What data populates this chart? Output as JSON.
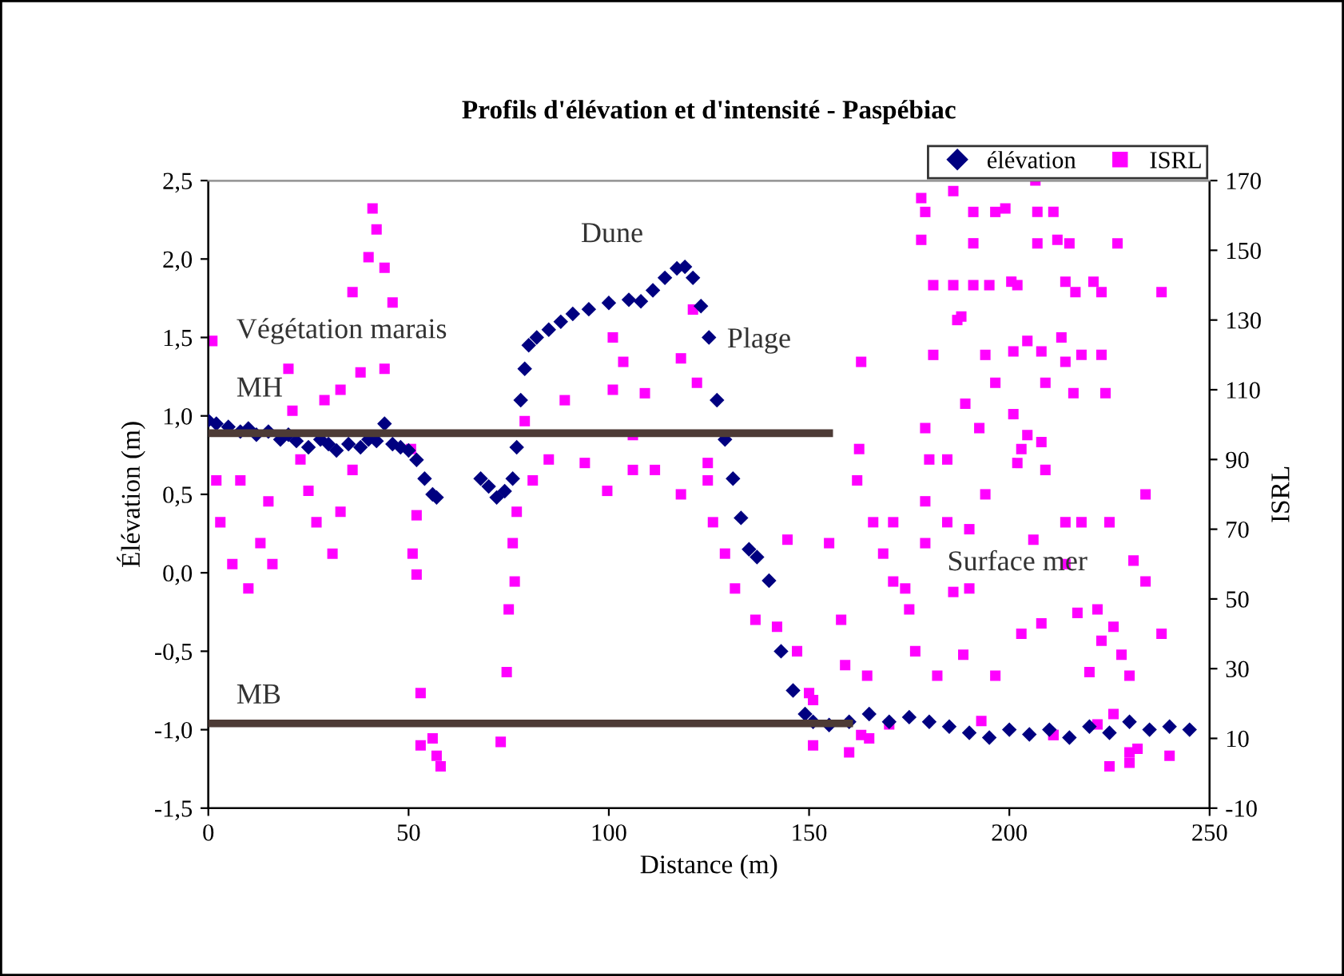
{
  "chart_data": {
    "type": "scatter",
    "title": "Profils d'élévation et d'intensité - Paspébiac",
    "xlabel": "Distance (m)",
    "ylabel": "Élévation (m)",
    "y2label": "ISRL",
    "xlim": [
      0,
      250
    ],
    "xticks": [
      0,
      50,
      100,
      150,
      200,
      250
    ],
    "ylim": [
      -1.5,
      2.5
    ],
    "yticks": [
      {
        "value": -1.5,
        "label": "-1,5"
      },
      {
        "value": -1.0,
        "label": "-1,0"
      },
      {
        "value": -0.5,
        "label": "-0,5"
      },
      {
        "value": 0,
        "label": "0,0"
      },
      {
        "value": 0.5,
        "label": "0,5"
      },
      {
        "value": 1.0,
        "label": "1,0"
      },
      {
        "value": 1.5,
        "label": "1,5"
      },
      {
        "value": 2.0,
        "label": "2,0"
      },
      {
        "value": 2.5,
        "label": "2,5"
      }
    ],
    "y2lim": [
      -10,
      170
    ],
    "y2ticks": [
      -10,
      10,
      30,
      50,
      70,
      90,
      110,
      130,
      150,
      170
    ],
    "grid": false,
    "legend": "top right",
    "series": [
      {
        "name": "élévation",
        "marker": "diamond",
        "color": "#000080",
        "x": [
          0,
          2,
          5,
          8,
          10,
          12,
          15,
          18,
          20,
          22,
          25,
          28,
          30,
          32,
          35,
          38,
          40,
          42,
          44,
          46,
          48,
          50,
          52,
          54,
          56,
          57,
          68,
          70,
          72,
          74,
          76,
          77,
          78,
          79,
          80,
          82,
          85,
          88,
          91,
          95,
          100,
          105,
          108,
          111,
          114,
          117,
          119,
          121,
          123,
          125,
          127,
          129,
          131,
          133,
          135,
          137,
          140,
          143,
          146,
          149,
          151,
          155,
          160,
          165,
          170,
          175,
          180,
          185,
          190,
          195,
          200,
          205,
          210,
          215,
          220,
          225,
          230,
          235,
          240,
          245
        ],
        "values": [
          0.97,
          0.95,
          0.93,
          0.9,
          0.92,
          0.88,
          0.9,
          0.85,
          0.88,
          0.84,
          0.8,
          0.85,
          0.82,
          0.78,
          0.82,
          0.8,
          0.85,
          0.84,
          0.95,
          0.82,
          0.8,
          0.78,
          0.72,
          0.6,
          0.5,
          0.48,
          0.6,
          0.55,
          0.48,
          0.52,
          0.6,
          0.8,
          1.1,
          1.3,
          1.45,
          1.5,
          1.55,
          1.6,
          1.65,
          1.68,
          1.72,
          1.74,
          1.73,
          1.8,
          1.88,
          1.94,
          1.95,
          1.88,
          1.7,
          1.5,
          1.1,
          0.85,
          0.6,
          0.35,
          0.15,
          0.1,
          -0.05,
          -0.5,
          -0.75,
          -0.9,
          -0.95,
          -0.97,
          -0.95,
          -0.9,
          -0.95,
          -0.92,
          -0.95,
          -0.98,
          -1.02,
          -1.05,
          -1.0,
          -1.03,
          -1.0,
          -1.05,
          -0.98,
          -1.02,
          -0.95,
          -1.0,
          -0.98,
          -1.0
        ]
      },
      {
        "name": "ISRL",
        "marker": "square",
        "color": "#ff00ff",
        "axis": "y2",
        "x": [
          1,
          2,
          3,
          8,
          6,
          10,
          15,
          13,
          16,
          20,
          21,
          23,
          25,
          27,
          31,
          29,
          33,
          33,
          36,
          38,
          40,
          41,
          42,
          44,
          46,
          44,
          36,
          50.6,
          52,
          51,
          52,
          53,
          53,
          56,
          57,
          58,
          73,
          74.5,
          75,
          76.5,
          76,
          77,
          79,
          89,
          101,
          103.6,
          101,
          109,
          118,
          121,
          122,
          85,
          81,
          94,
          99.6,
          106,
          106,
          111.5,
          118,
          124.7,
          124.7,
          126,
          129,
          131.5,
          136.6,
          142,
          144.6,
          147,
          150,
          151,
          155,
          158,
          159,
          162.5,
          162,
          163,
          164.5,
          166,
          171,
          168.5,
          171,
          174,
          175,
          176.5,
          178,
          178,
          179,
          186,
          179,
          180,
          184.5,
          181,
          186,
          181,
          179,
          184.5,
          190,
          179,
          182,
          188.5,
          186,
          191,
          191,
          191,
          195,
          196.5,
          199,
          187,
          188,
          189,
          192.5,
          194,
          196.5,
          194,
          190,
          196.5,
          200.5,
          202,
          201,
          203,
          202,
          201,
          204.5,
          204.5,
          207,
          207,
          206.5,
          206,
          203,
          208,
          209,
          208,
          209,
          208,
          211,
          212,
          213,
          211,
          214,
          216,
          214,
          214,
          215,
          214,
          216.5,
          218,
          218,
          217,
          221,
          223,
          223,
          224,
          225,
          222,
          220,
          227,
          223,
          226,
          228,
          230,
          234,
          231,
          234,
          238,
          238,
          211,
          230,
          232,
          222,
          226,
          193,
          163,
          151,
          160,
          165,
          170,
          225,
          230,
          240
        ],
        "values": [
          124,
          84,
          72,
          84,
          60,
          53,
          78,
          66,
          60,
          116,
          104,
          90,
          81,
          72,
          63,
          107,
          110,
          75,
          138,
          115,
          148,
          162,
          156,
          145,
          135,
          116,
          87,
          93,
          74,
          63,
          57,
          23,
          8,
          10,
          5,
          2,
          9,
          29,
          47,
          55,
          66,
          75,
          101,
          107,
          125,
          118,
          110,
          109,
          119,
          133,
          112,
          90,
          84,
          89,
          81,
          97,
          87,
          87,
          80,
          89,
          84,
          72,
          63,
          53,
          44,
          42,
          67,
          35,
          23,
          8,
          66,
          44,
          31,
          93,
          84,
          118,
          28,
          72,
          72,
          63,
          55,
          53,
          47,
          35,
          165,
          153,
          161,
          167,
          99,
          90,
          90,
          140,
          140,
          120,
          78,
          72,
          70,
          66,
          28,
          34,
          52,
          161,
          152,
          140,
          140,
          161,
          162,
          130,
          131,
          106,
          99,
          120,
          112,
          80,
          53,
          28,
          141,
          140,
          103,
          93,
          89,
          121,
          124,
          97,
          161,
          152,
          170,
          67,
          40,
          121,
          112,
          95,
          87,
          43,
          161,
          153,
          125,
          11,
          118,
          109,
          60,
          72,
          152,
          141,
          138,
          120,
          72,
          46,
          141,
          138,
          120,
          109,
          72,
          47,
          29,
          152,
          38,
          42,
          34,
          28,
          80,
          61,
          55,
          138,
          40,
          11,
          6,
          7,
          14,
          17,
          15,
          11,
          21,
          6,
          10,
          14,
          2,
          3,
          5
        ]
      },
      {
        "type": "line",
        "color": "#4d3b36",
        "x": [
          0,
          155
        ],
        "values": [
          0.89,
          0.89
        ]
      },
      {
        "type": "line",
        "color": "#4d3b36",
        "x": [
          0,
          160
        ],
        "values": [
          -0.96,
          -0.96
        ]
      }
    ],
    "annotations": [
      "Végétation marais",
      "MH",
      "MB",
      "Dune",
      "Plage",
      "Surface mer"
    ]
  }
}
